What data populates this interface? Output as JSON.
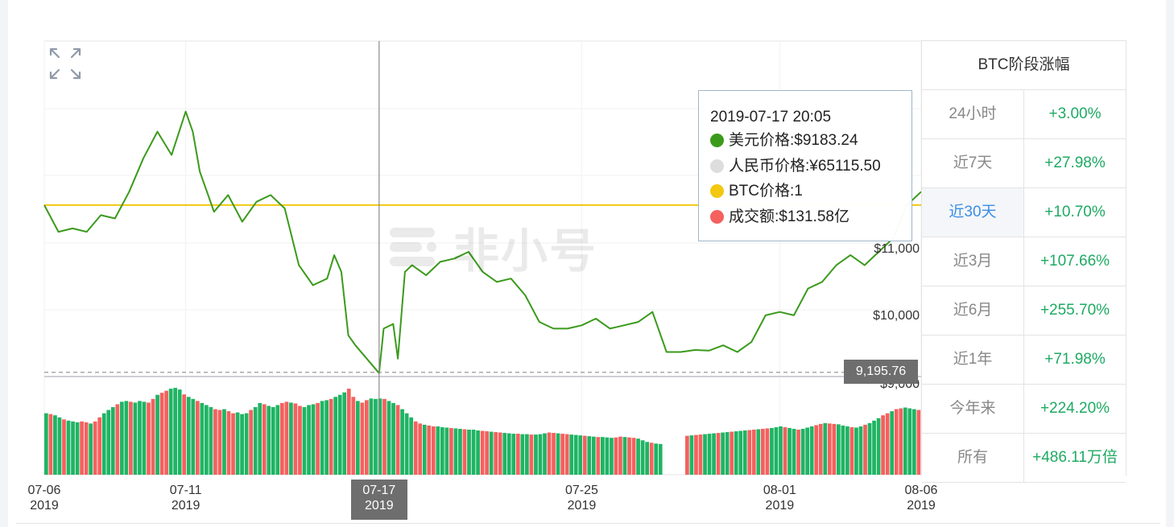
{
  "chart_data": {
    "type": "line",
    "price_series": {
      "name": "美元价格",
      "color": "#3b9a1c",
      "points": [
        [
          "2019-07-06",
          11700
        ],
        [
          "2019-07-06 12:00",
          11300
        ],
        [
          "2019-07-07",
          11350
        ],
        [
          "2019-07-07 12:00",
          11300
        ],
        [
          "2019-07-08",
          11550
        ],
        [
          "2019-07-08 12:00",
          11500
        ],
        [
          "2019-07-09",
          11900
        ],
        [
          "2019-07-09 12:00",
          12400
        ],
        [
          "2019-07-10",
          12800
        ],
        [
          "2019-07-10 12:00",
          12450
        ],
        [
          "2019-07-11",
          13100
        ],
        [
          "2019-07-11 06:00",
          12800
        ],
        [
          "2019-07-11 12:00",
          12200
        ],
        [
          "2019-07-12",
          11600
        ],
        [
          "2019-07-12 12:00",
          11850
        ],
        [
          "2019-07-13",
          11450
        ],
        [
          "2019-07-13 12:00",
          11750
        ],
        [
          "2019-07-14",
          11850
        ],
        [
          "2019-07-14 12:00",
          11650
        ],
        [
          "2019-07-15",
          10800
        ],
        [
          "2019-07-15 12:00",
          10500
        ],
        [
          "2019-07-16",
          10600
        ],
        [
          "2019-07-16 06:00",
          10950
        ],
        [
          "2019-07-16 12:00",
          10700
        ],
        [
          "2019-07-16 18:00",
          9750
        ],
        [
          "2019-07-17",
          9600
        ],
        [
          "2019-07-17 20:05",
          9183.24
        ],
        [
          "2019-07-18",
          9850
        ],
        [
          "2019-07-18 08:00",
          9920
        ],
        [
          "2019-07-18 12:00",
          9400
        ],
        [
          "2019-07-18 18:00",
          10700
        ],
        [
          "2019-07-19",
          10800
        ],
        [
          "2019-07-19 12:00",
          10650
        ],
        [
          "2019-07-20",
          10850
        ],
        [
          "2019-07-20 12:00",
          10900
        ],
        [
          "2019-07-21",
          11000
        ],
        [
          "2019-07-21 12:00",
          10700
        ],
        [
          "2019-07-22",
          10550
        ],
        [
          "2019-07-22 12:00",
          10600
        ],
        [
          "2019-07-23",
          10350
        ],
        [
          "2019-07-23 12:00",
          9950
        ],
        [
          "2019-07-24",
          9850
        ],
        [
          "2019-07-24 12:00",
          9850
        ],
        [
          "2019-07-25",
          9900
        ],
        [
          "2019-07-25 12:00",
          10000
        ],
        [
          "2019-07-26",
          9850
        ],
        [
          "2019-07-26 12:00",
          9900
        ],
        [
          "2019-07-27",
          9950
        ],
        [
          "2019-07-27 12:00",
          10100
        ],
        [
          "2019-07-28",
          9500
        ],
        [
          "2019-07-28 12:00",
          9500
        ],
        [
          "2019-07-29",
          9530
        ],
        [
          "2019-07-29 12:00",
          9520
        ],
        [
          "2019-07-30",
          9600
        ],
        [
          "2019-07-30 12:00",
          9500
        ],
        [
          "2019-07-31",
          9650
        ],
        [
          "2019-07-31 12:00",
          10050
        ],
        [
          "2019-08-01",
          10100
        ],
        [
          "2019-08-01 12:00",
          10050
        ],
        [
          "2019-08-02",
          10450
        ],
        [
          "2019-08-02 12:00",
          10550
        ],
        [
          "2019-08-03",
          10800
        ],
        [
          "2019-08-03 12:00",
          10950
        ],
        [
          "2019-08-04",
          10800
        ],
        [
          "2019-08-04 12:00",
          11000
        ],
        [
          "2019-08-05",
          11200
        ],
        [
          "2019-08-05 12:00",
          11700
        ],
        [
          "2019-08-06",
          11900
        ]
      ]
    },
    "reference_line": {
      "value": 11700,
      "color": "#f2c811"
    },
    "last_price_line": {
      "value": 9195.76,
      "label": "9,195.76"
    },
    "y_ticks": [
      {
        "value": 11000,
        "label": "$11,000"
      },
      {
        "value": 10000,
        "label": "$10,000"
      },
      {
        "value": 9000,
        "label": "$9,000"
      }
    ],
    "x_ticks": [
      {
        "date": "2019-07-06",
        "label": "07-06",
        "year": "2019"
      },
      {
        "date": "2019-07-11",
        "label": "07-11",
        "year": "2019"
      },
      {
        "date": "2019-07-25",
        "label": "07-25",
        "year": "2019"
      },
      {
        "date": "2019-08-01",
        "label": "08-01",
        "year": "2019"
      },
      {
        "date": "2019-08-06",
        "label": "08-06",
        "year": "2019"
      }
    ],
    "cursor": {
      "date": "2019-07-17 20:05",
      "label": "07-17",
      "year": "2019"
    },
    "volume_series": {
      "name": "成交额",
      "up_color": "#1fb464",
      "down_color": "#f4615e",
      "unit": "亿美元",
      "values": [
        150,
        148,
        145,
        140,
        135,
        132,
        130,
        128,
        130,
        128,
        125,
        130,
        140,
        150,
        158,
        165,
        172,
        178,
        180,
        178,
        176,
        180,
        178,
        176,
        185,
        195,
        200,
        205,
        210,
        212,
        208,
        196,
        190,
        185,
        180,
        175,
        170,
        165,
        160,
        158,
        160,
        155,
        150,
        152,
        148,
        150,
        158,
        165,
        175,
        172,
        168,
        165,
        170,
        175,
        178,
        176,
        174,
        168,
        165,
        170,
        172,
        175,
        180,
        182,
        185,
        190,
        195,
        201,
        210,
        190,
        180,
        176,
        182,
        186,
        185,
        186,
        185,
        180,
        175,
        170,
        160,
        150,
        140,
        130,
        125,
        122,
        120,
        118,
        118,
        116,
        115,
        114,
        113,
        112,
        111,
        110,
        110,
        108,
        107,
        106,
        105,
        104,
        103,
        102,
        101,
        100,
        100,
        99,
        99,
        98,
        98,
        99,
        101,
        103,
        102,
        101,
        100,
        99,
        98,
        97,
        96,
        95,
        94,
        93,
        92,
        92,
        91,
        90,
        91,
        93,
        92,
        91,
        90,
        88,
        84,
        80,
        78,
        76,
        75,
        0,
        0,
        0,
        0,
        0,
        95,
        96,
        97,
        98,
        99,
        100,
        101,
        102,
        103,
        104,
        105,
        106,
        107,
        108,
        109,
        110,
        111,
        112,
        113,
        114,
        116,
        118,
        116,
        114,
        112,
        110,
        112,
        115,
        118,
        121,
        124,
        126,
        125,
        124,
        123,
        120,
        118,
        116,
        115,
        118,
        122,
        126,
        132,
        138,
        145,
        150,
        155,
        160,
        162,
        164,
        162,
        160,
        158
      ]
    }
  },
  "tooltip": {
    "time": "2019-07-17 20:05",
    "rows": [
      {
        "text": "美元价格:$9183.24",
        "color": "#3b9a1c"
      },
      {
        "text": "人民币价格:¥65115.50",
        "color": "#dddddd"
      },
      {
        "text": "BTC价格:1",
        "color": "#f2c811"
      },
      {
        "text": "成交额:$131.58亿",
        "color": "#f4615e"
      }
    ]
  },
  "watermark": {
    "text": "非小号"
  },
  "stats": {
    "title": "BTC阶段涨幅",
    "rows": [
      {
        "period": "24小时",
        "change": "+3.00%"
      },
      {
        "period": "近7天",
        "change": "+27.98%"
      },
      {
        "period": "近30天",
        "change": "+10.70%",
        "active": true
      },
      {
        "period": "近3月",
        "change": "+107.66%"
      },
      {
        "period": "近6月",
        "change": "+255.70%"
      },
      {
        "period": "近1年",
        "change": "+71.98%"
      },
      {
        "period": "今年来",
        "change": "+224.20%"
      },
      {
        "period": "所有",
        "change": "+486.11万倍"
      }
    ]
  },
  "icons": {
    "expand": "expand-icon"
  }
}
